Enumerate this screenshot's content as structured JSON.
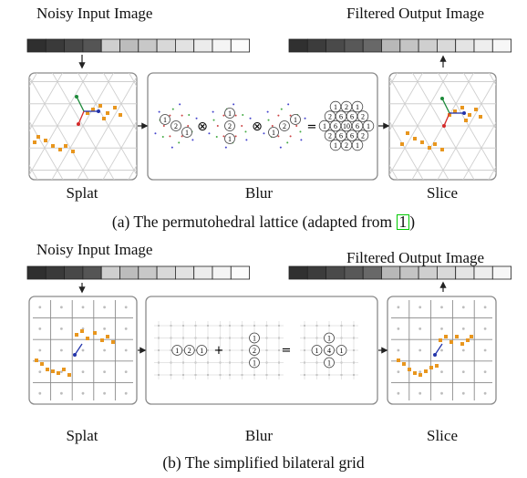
{
  "colors": {
    "input_strip": [
      "#2f2f2f",
      "#3a3a3a",
      "#484848",
      "#555555",
      "#cfcfcf",
      "#bcbcbc",
      "#c8c8c8",
      "#d8d8d8",
      "#e2e2e2",
      "#ececec",
      "#f4f4f4",
      "#fbfbfb"
    ],
    "output_strip": [
      "#303030",
      "#3c3c3c",
      "#4a4a4a",
      "#585858",
      "#686868",
      "#b8b8b8",
      "#c4c4c4",
      "#cfcfcf",
      "#d9d9d9",
      "#e4e4e4",
      "#eeeeee",
      "#f7f7f7"
    ],
    "point": "#e8961e",
    "lattice_line": "#cfcfcf",
    "panel_border": "#8a8a8a",
    "vector_green": "#1d8a3a",
    "vector_red": "#d42a2a",
    "vector_blue": "#2233aa"
  },
  "panel_a": {
    "input_label": "Noisy Input Image",
    "output_label": "Filtered Output Image",
    "splat_label": "Splat",
    "blur_label": "Blur",
    "slice_label": "Slice",
    "caption_before": "(a) The permutohedral lattice (adapted from ",
    "citation": "1",
    "caption_after": ")",
    "kernel_weights": [
      "1",
      "2",
      "1"
    ],
    "convolve_symbol": "⊗",
    "equals_symbol": "=",
    "result_weights": [
      "1",
      "2",
      "1",
      "2",
      "6",
      "6",
      "2",
      "1",
      "6",
      "10",
      "6",
      "1",
      "2",
      "6",
      "6",
      "2",
      "1",
      "2",
      "1"
    ]
  },
  "panel_b": {
    "input_label": "Noisy Input Image",
    "output_label": "Filtered Output Image",
    "splat_label": "Splat",
    "blur_label": "Blur",
    "slice_label": "Slice",
    "caption": "(b) The simplified bilateral grid",
    "kernel_weights": [
      "1",
      "2",
      "1"
    ],
    "plus_symbol": "+",
    "equals_symbol": "=",
    "result_weights": [
      "1",
      "1",
      "4",
      "1",
      "1"
    ]
  }
}
